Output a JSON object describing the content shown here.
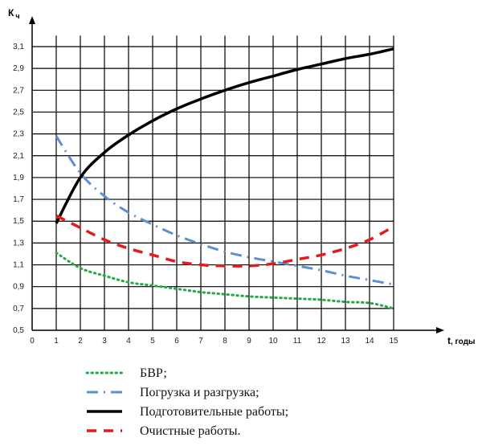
{
  "chart_data": {
    "type": "line",
    "ylabel": "К",
    "ylabel_sub": "ч",
    "xlabel": "t",
    "xlabel_unit": ", годы",
    "xlim": [
      0,
      15
    ],
    "ylim": [
      0.5,
      3.2
    ],
    "x_ticks": [
      0,
      1,
      2,
      3,
      4,
      5,
      6,
      7,
      8,
      9,
      10,
      11,
      12,
      13,
      14,
      15
    ],
    "y_ticks": [
      0.5,
      0.7,
      0.9,
      1.1,
      1.3,
      1.5,
      1.7,
      1.9,
      2.1,
      2.3,
      2.5,
      2.7,
      2.9,
      3.1
    ],
    "y_tick_labels": [
      "0,5",
      "0,7",
      "0,9",
      "1,1",
      "1,3",
      "1,5",
      "1,7",
      "1,9",
      "2,1",
      "2,3",
      "2,5",
      "2,7",
      "2,9",
      "3,1"
    ],
    "grid": true,
    "legend_position": "bottom",
    "series": [
      {
        "name": "БВР;",
        "style": "dotted",
        "color": "#22aa44",
        "x": [
          1,
          2,
          3,
          4,
          5,
          6,
          7,
          8,
          9,
          10,
          11,
          12,
          13,
          14,
          15
        ],
        "y": [
          1.21,
          1.07,
          1.0,
          0.94,
          0.91,
          0.88,
          0.85,
          0.83,
          0.81,
          0.8,
          0.79,
          0.78,
          0.76,
          0.75,
          0.7
        ]
      },
      {
        "name": "Погрузка и разгрузка;",
        "style": "dash-dot",
        "color": "#5b8fd6",
        "x": [
          1,
          2,
          3,
          4,
          5,
          6,
          7,
          8,
          9,
          10,
          11,
          12,
          13,
          14,
          15
        ],
        "y": [
          2.28,
          1.94,
          1.73,
          1.58,
          1.47,
          1.37,
          1.29,
          1.22,
          1.17,
          1.13,
          1.09,
          1.05,
          1.0,
          0.96,
          0.92
        ]
      },
      {
        "name": "Подготовительные работы;",
        "style": "solid",
        "color": "#000000",
        "x": [
          1,
          2,
          3,
          4,
          5,
          6,
          7,
          8,
          9,
          10,
          11,
          12,
          13,
          14,
          15
        ],
        "y": [
          1.48,
          1.9,
          2.13,
          2.29,
          2.42,
          2.53,
          2.62,
          2.7,
          2.77,
          2.83,
          2.89,
          2.94,
          2.99,
          3.03,
          3.08
        ]
      },
      {
        "name": "Очистные работы.",
        "style": "dashed",
        "color": "#e41a1c",
        "x": [
          1,
          2,
          3,
          4,
          5,
          6,
          7,
          8,
          9,
          10,
          11,
          12,
          13,
          14,
          15
        ],
        "y": [
          1.55,
          1.44,
          1.33,
          1.25,
          1.19,
          1.13,
          1.1,
          1.09,
          1.09,
          1.11,
          1.15,
          1.19,
          1.25,
          1.33,
          1.45
        ]
      }
    ]
  }
}
